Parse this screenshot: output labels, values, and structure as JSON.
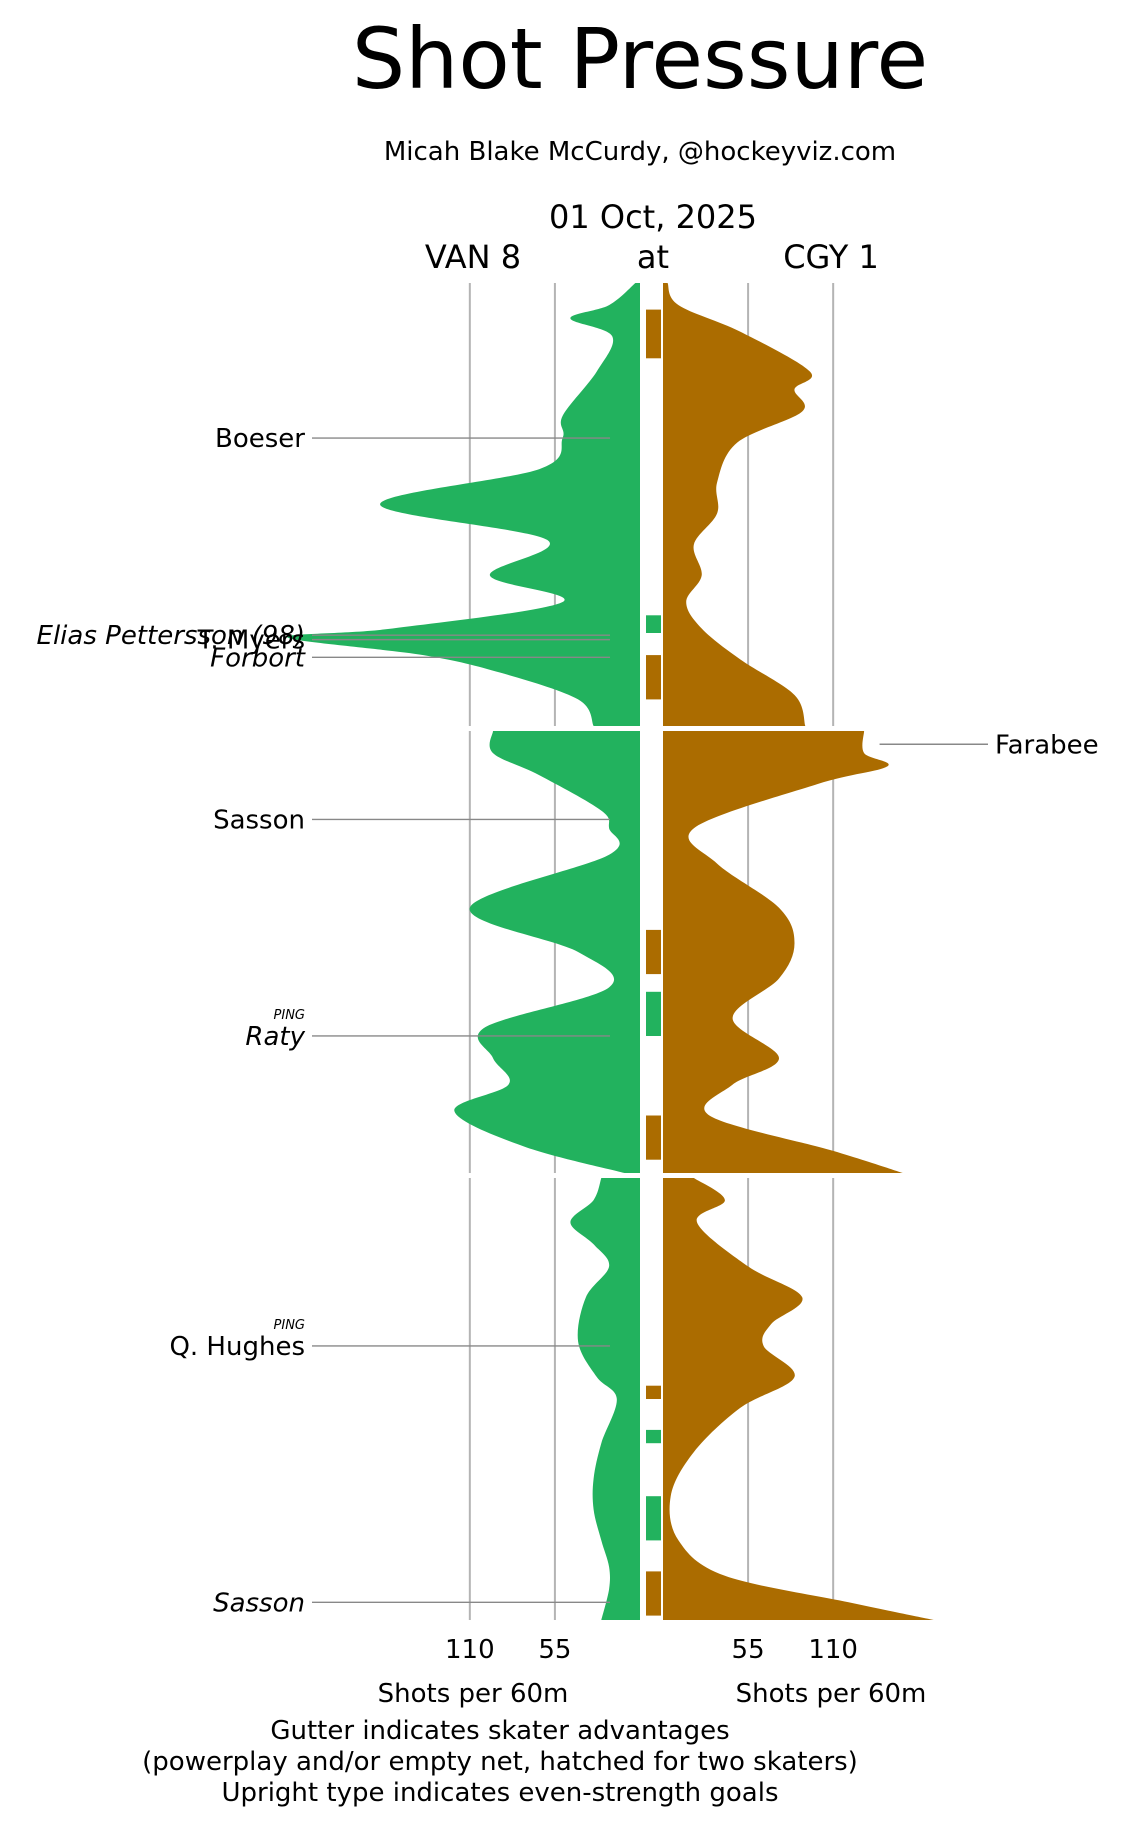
{
  "chart_data": {
    "type": "area",
    "title": "Shot Pressure",
    "subtitle": "Micah Blake McCurdy, @hockeyviz.com",
    "date": "01 Oct, 2025",
    "home": {
      "label": "CGY 1",
      "color": "#ab6c00"
    },
    "away": {
      "label": "VAN 8",
      "color": "#22b25e"
    },
    "at_label": "at",
    "x_axis": {
      "ticks": [
        110,
        55
      ],
      "tick_labels": [
        "110",
        "55"
      ],
      "xlabel": "Shots per 60m",
      "max_value": 160
    },
    "periods": [
      {
        "away_profile": [
          [
            0,
            3
          ],
          [
            0.05,
            20
          ],
          [
            0.08,
            45
          ],
          [
            0.12,
            18
          ],
          [
            0.2,
            28
          ],
          [
            0.3,
            50
          ],
          [
            0.35,
            50
          ],
          [
            0.42,
            65
          ],
          [
            0.5,
            168
          ],
          [
            0.58,
            60
          ],
          [
            0.66,
            97
          ],
          [
            0.72,
            50
          ],
          [
            0.78,
            160
          ],
          [
            0.8,
            228
          ],
          [
            0.84,
            140
          ],
          [
            0.88,
            90
          ],
          [
            0.94,
            40
          ],
          [
            1.0,
            30
          ]
        ],
        "home_profile": [
          [
            0,
            3
          ],
          [
            0.05,
            10
          ],
          [
            0.11,
            50
          ],
          [
            0.2,
            95
          ],
          [
            0.24,
            85
          ],
          [
            0.29,
            90
          ],
          [
            0.36,
            48
          ],
          [
            0.45,
            35
          ],
          [
            0.52,
            35
          ],
          [
            0.59,
            20
          ],
          [
            0.66,
            25
          ],
          [
            0.72,
            15
          ],
          [
            0.78,
            25
          ],
          [
            0.85,
            50
          ],
          [
            0.93,
            85
          ],
          [
            1.0,
            92
          ]
        ],
        "advantages": [
          {
            "team": "home",
            "start": 0.06,
            "end": 0.17
          },
          {
            "team": "away",
            "start": 0.75,
            "end": 0.79
          },
          {
            "team": "home",
            "start": 0.84,
            "end": 0.94
          }
        ],
        "goals": [
          {
            "team": "away",
            "player": "Boeser",
            "pos": 0.35,
            "even_strength": true
          },
          {
            "team": "away",
            "player": "Elias Pettersson (98)",
            "pos": 0.795,
            "even_strength": false
          },
          {
            "team": "away",
            "player": "T. Myers",
            "pos": 0.805,
            "even_strength": true
          },
          {
            "team": "away",
            "player": "Forbort",
            "pos": 0.845,
            "even_strength": false
          }
        ]
      },
      {
        "away_profile": [
          [
            0,
            95
          ],
          [
            0.05,
            95
          ],
          [
            0.1,
            65
          ],
          [
            0.18,
            25
          ],
          [
            0.22,
            20
          ],
          [
            0.28,
            20
          ],
          [
            0.4,
            110
          ],
          [
            0.5,
            40
          ],
          [
            0.58,
            20
          ],
          [
            0.67,
            100
          ],
          [
            0.74,
            95
          ],
          [
            0.8,
            85
          ],
          [
            0.86,
            120
          ],
          [
            0.94,
            75
          ],
          [
            1.0,
            10
          ]
        ],
        "home_profile": [
          [
            0,
            130
          ],
          [
            0.05,
            130
          ],
          [
            0.08,
            145
          ],
          [
            0.12,
            100
          ],
          [
            0.22,
            20
          ],
          [
            0.3,
            35
          ],
          [
            0.4,
            75
          ],
          [
            0.48,
            85
          ],
          [
            0.56,
            75
          ],
          [
            0.65,
            45
          ],
          [
            0.74,
            75
          ],
          [
            0.8,
            45
          ],
          [
            0.87,
            30
          ],
          [
            0.95,
            110
          ],
          [
            1.0,
            155
          ]
        ],
        "advantages": [
          {
            "team": "home",
            "start": 0.45,
            "end": 0.55
          },
          {
            "team": "away",
            "start": 0.59,
            "end": 0.69
          },
          {
            "team": "home",
            "start": 0.87,
            "end": 0.97
          }
        ],
        "goals": [
          {
            "team": "home",
            "player": "Farabee",
            "pos": 0.03,
            "even_strength": true
          },
          {
            "team": "away",
            "player": "Sasson",
            "pos": 0.2,
            "even_strength": true
          },
          {
            "team": "away",
            "player": "Raty",
            "pos": 0.69,
            "even_strength": false,
            "tag": "PING"
          }
        ]
      },
      {
        "away_profile": [
          [
            0,
            25
          ],
          [
            0.05,
            30
          ],
          [
            0.1,
            45
          ],
          [
            0.15,
            30
          ],
          [
            0.2,
            20
          ],
          [
            0.27,
            35
          ],
          [
            0.37,
            40
          ],
          [
            0.45,
            28
          ],
          [
            0.5,
            15
          ],
          [
            0.6,
            25
          ],
          [
            0.68,
            30
          ],
          [
            0.75,
            30
          ],
          [
            0.82,
            25
          ],
          [
            0.88,
            20
          ],
          [
            0.93,
            20
          ],
          [
            1.0,
            25
          ]
        ],
        "home_profile": [
          [
            0,
            20
          ],
          [
            0.05,
            40
          ],
          [
            0.1,
            22
          ],
          [
            0.2,
            55
          ],
          [
            0.27,
            90
          ],
          [
            0.33,
            70
          ],
          [
            0.38,
            65
          ],
          [
            0.45,
            85
          ],
          [
            0.52,
            50
          ],
          [
            0.62,
            20
          ],
          [
            0.72,
            5
          ],
          [
            0.82,
            10
          ],
          [
            0.9,
            40
          ],
          [
            0.96,
            120
          ],
          [
            1.0,
            175
          ]
        ],
        "advantages": [
          {
            "team": "home",
            "start": 0.47,
            "end": 0.5
          },
          {
            "team": "away",
            "start": 0.57,
            "end": 0.6
          },
          {
            "team": "away",
            "start": 0.72,
            "end": 0.82
          },
          {
            "team": "home",
            "start": 0.89,
            "end": 0.99
          }
        ],
        "goals": [
          {
            "team": "away",
            "player": "Q. Hughes",
            "pos": 0.38,
            "even_strength": true,
            "tag": "PING"
          },
          {
            "team": "away",
            "player": "Sasson",
            "pos": 0.96,
            "even_strength": false
          }
        ]
      }
    ],
    "footnotes": [
      "Gutter indicates skater advantages",
      "(powerplay and/or empty net, hatched for two skaters)",
      "Upright type indicates even-strength goals"
    ]
  }
}
